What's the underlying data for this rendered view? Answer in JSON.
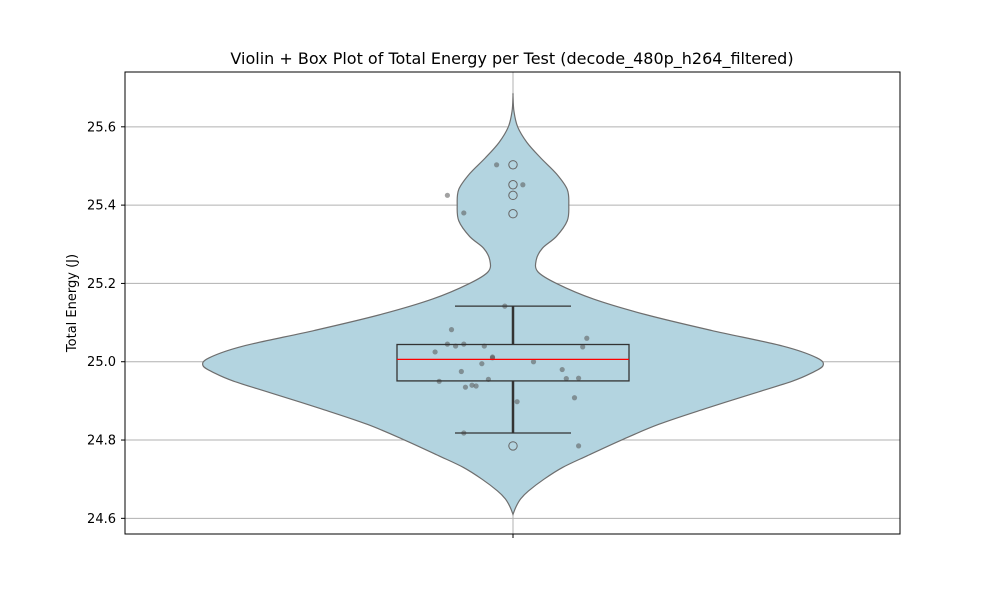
{
  "chart_data": {
    "type": "violin",
    "title": "Violin + Box Plot of Total Energy per Test (decode_480p_h264_filtered)",
    "xlabel": "",
    "ylabel": "Total Energy (J)",
    "ylim": [
      24.56,
      25.74
    ],
    "yticks": [
      24.6,
      24.8,
      25.0,
      25.2,
      25.4,
      25.6
    ],
    "ytick_labels": [
      "24.6",
      "24.8",
      "25.0",
      "25.2",
      "25.4",
      "25.6"
    ],
    "grid": true,
    "colors": {
      "violin_fill": "#b3d4e0",
      "violin_edge": "#6e6e6e",
      "box_edge": "#333333",
      "median": "#ff0000",
      "grid": "#b0b0b0",
      "points": "#555555"
    },
    "violin_range": [
      24.61,
      25.68
    ],
    "violin_profile": [
      [
        24.61,
        0.0
      ],
      [
        24.63,
        0.01
      ],
      [
        24.65,
        0.025
      ],
      [
        24.67,
        0.05
      ],
      [
        24.7,
        0.1
      ],
      [
        24.73,
        0.16
      ],
      [
        24.76,
        0.24
      ],
      [
        24.8,
        0.35
      ],
      [
        24.84,
        0.47
      ],
      [
        24.88,
        0.62
      ],
      [
        24.92,
        0.78
      ],
      [
        24.95,
        0.9
      ],
      [
        24.97,
        0.96
      ],
      [
        24.99,
        1.0
      ],
      [
        25.01,
        0.98
      ],
      [
        25.04,
        0.87
      ],
      [
        25.08,
        0.64
      ],
      [
        25.12,
        0.43
      ],
      [
        25.16,
        0.26
      ],
      [
        25.2,
        0.14
      ],
      [
        25.23,
        0.08
      ],
      [
        25.26,
        0.075
      ],
      [
        25.29,
        0.095
      ],
      [
        25.32,
        0.14
      ],
      [
        25.36,
        0.175
      ],
      [
        25.4,
        0.18
      ],
      [
        25.44,
        0.175
      ],
      [
        25.48,
        0.14
      ],
      [
        25.52,
        0.09
      ],
      [
        25.56,
        0.045
      ],
      [
        25.6,
        0.015
      ],
      [
        25.64,
        0.003
      ],
      [
        25.68,
        0.0
      ]
    ],
    "box": {
      "q1": 24.951,
      "median": 25.006,
      "q3": 25.044,
      "whisker_low": 24.818,
      "whisker_high": 25.142
    },
    "outliers": [
      25.503,
      25.452,
      25.425,
      25.378,
      24.785
    ],
    "points": [
      [
        -0.02,
        25.503
      ],
      [
        0.012,
        25.452
      ],
      [
        -0.08,
        25.425
      ],
      [
        -0.06,
        25.38
      ],
      [
        -0.01,
        25.142
      ],
      [
        -0.075,
        25.082
      ],
      [
        -0.095,
        25.025
      ],
      [
        -0.08,
        25.045
      ],
      [
        -0.06,
        25.045
      ],
      [
        -0.035,
        25.04
      ],
      [
        -0.025,
        25.012
      ],
      [
        -0.038,
        24.995
      ],
      [
        -0.063,
        24.975
      ],
      [
        0.025,
        25.0
      ],
      [
        0.09,
        25.06
      ],
      [
        0.085,
        25.038
      ],
      [
        -0.03,
        24.955
      ],
      [
        -0.09,
        24.95
      ],
      [
        -0.05,
        24.94
      ],
      [
        -0.045,
        24.938
      ],
      [
        -0.058,
        24.935
      ],
      [
        0.06,
        24.98
      ],
      [
        0.065,
        24.957
      ],
      [
        0.08,
        24.958
      ],
      [
        0.075,
        24.908
      ],
      [
        0.005,
        24.898
      ],
      [
        -0.06,
        24.818
      ],
      [
        0.08,
        24.785
      ],
      [
        -0.025,
        25.01
      ],
      [
        -0.07,
        25.04
      ]
    ]
  }
}
